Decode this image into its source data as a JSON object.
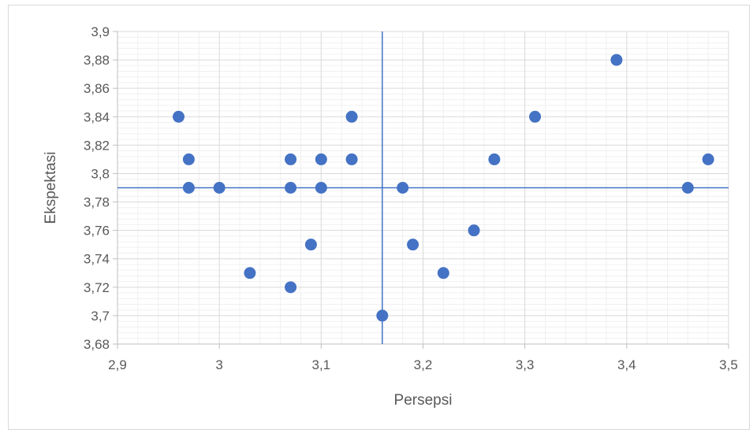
{
  "chart_data": {
    "type": "scatter",
    "title": "",
    "xlabel": "Persepsi",
    "ylabel": "Ekspektasi",
    "xlim": [
      2.9,
      3.5
    ],
    "ylim": [
      3.68,
      3.9
    ],
    "x_ticks": [
      "2,9",
      "3",
      "3,1",
      "3,2",
      "3,3",
      "3,4",
      "3,5"
    ],
    "y_ticks": [
      "3,68",
      "3,7",
      "3,72",
      "3,74",
      "3,76",
      "3,78",
      "3,8",
      "3,82",
      "3,84",
      "3,86",
      "3,88",
      "3,9"
    ],
    "grid": "major-and-minor",
    "reference_lines": {
      "x": 3.16,
      "y": 3.79
    },
    "marker_color": "#4472c4",
    "reference_line_color": "#4472c4",
    "points": [
      {
        "x": 2.96,
        "y": 3.84
      },
      {
        "x": 2.97,
        "y": 3.81
      },
      {
        "x": 2.97,
        "y": 3.79
      },
      {
        "x": 3.0,
        "y": 3.79
      },
      {
        "x": 3.03,
        "y": 3.73
      },
      {
        "x": 3.07,
        "y": 3.81
      },
      {
        "x": 3.07,
        "y": 3.79
      },
      {
        "x": 3.07,
        "y": 3.72
      },
      {
        "x": 3.09,
        "y": 3.75
      },
      {
        "x": 3.1,
        "y": 3.81
      },
      {
        "x": 3.1,
        "y": 3.79
      },
      {
        "x": 3.13,
        "y": 3.84
      },
      {
        "x": 3.13,
        "y": 3.81
      },
      {
        "x": 3.16,
        "y": 3.7
      },
      {
        "x": 3.18,
        "y": 3.79
      },
      {
        "x": 3.19,
        "y": 3.75
      },
      {
        "x": 3.22,
        "y": 3.73
      },
      {
        "x": 3.25,
        "y": 3.76
      },
      {
        "x": 3.27,
        "y": 3.81
      },
      {
        "x": 3.31,
        "y": 3.84
      },
      {
        "x": 3.39,
        "y": 3.88
      },
      {
        "x": 3.46,
        "y": 3.79
      },
      {
        "x": 3.48,
        "y": 3.81
      }
    ]
  }
}
